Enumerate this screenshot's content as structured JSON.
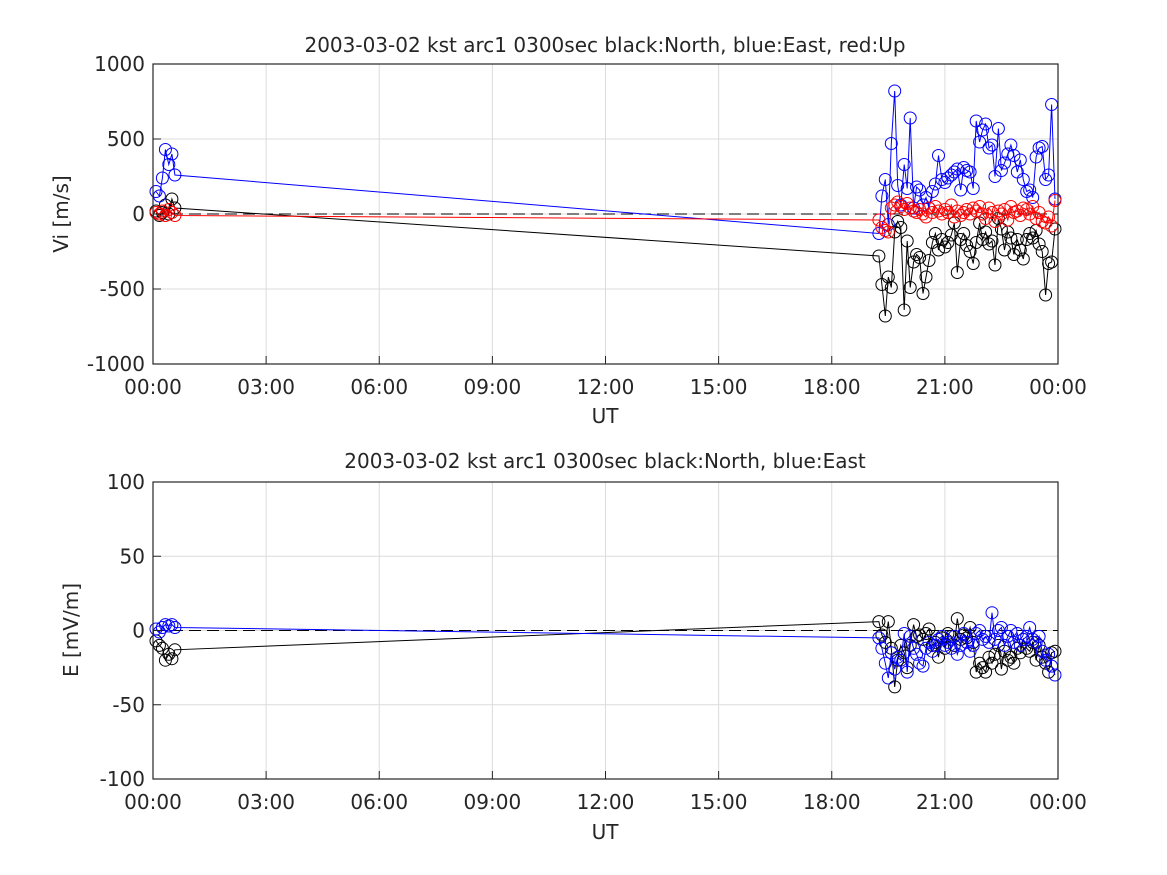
{
  "chart_data": [
    {
      "type": "line",
      "title": "2003-03-02 kst arc1 0300sec black:North, blue:East, red:Up",
      "xlabel": "UT",
      "ylabel": "Vi [m/s]",
      "ylim": [
        -1000,
        1000
      ],
      "yticks": [
        "1000",
        "500",
        "0",
        "-500",
        "-1000"
      ],
      "xlim_hours": [
        0,
        24
      ],
      "xticks": [
        "00:00",
        "03:00",
        "06:00",
        "09:00",
        "12:00",
        "15:00",
        "18:00",
        "21:00",
        "00:00"
      ],
      "grid": true,
      "zero_line": "dashed",
      "markers": "open-circle",
      "series": [
        {
          "name": "North",
          "color": "#000000",
          "x": [
            0.08,
            0.17,
            0.25,
            0.33,
            0.42,
            0.5,
            0.58,
            19.25,
            19.33,
            19.42,
            19.5,
            19.58,
            19.67,
            19.75,
            19.83,
            19.92,
            20.0,
            20.08,
            20.17,
            20.25,
            20.33,
            20.42,
            20.5,
            20.58,
            20.67,
            20.75,
            20.83,
            20.92,
            21.0,
            21.08,
            21.17,
            21.25,
            21.33,
            21.42,
            21.5,
            21.58,
            21.67,
            21.75,
            21.83,
            21.92,
            22.0,
            22.08,
            22.17,
            22.25,
            22.33,
            22.42,
            22.5,
            22.58,
            22.67,
            22.75,
            22.83,
            22.92,
            23.0,
            23.08,
            23.17,
            23.25,
            23.33,
            23.42,
            23.5,
            23.58,
            23.67,
            23.75,
            23.83,
            23.92
          ],
          "y": [
            20,
            -10,
            10,
            60,
            0,
            100,
            40,
            -280,
            -470,
            -680,
            -420,
            -490,
            -120,
            -50,
            -90,
            -640,
            -180,
            -490,
            -320,
            -270,
            -290,
            -530,
            -420,
            -310,
            -190,
            -130,
            -240,
            -170,
            -220,
            -190,
            -140,
            -60,
            -390,
            -170,
            -130,
            -210,
            -250,
            -330,
            -190,
            -60,
            -170,
            -120,
            -200,
            -180,
            -340,
            -30,
            -100,
            -240,
            -120,
            -160,
            -270,
            -170,
            -240,
            -300,
            -170,
            -130,
            -160,
            -110,
            -200,
            -250,
            -540,
            -330,
            -320,
            -100
          ]
        },
        {
          "name": "East",
          "color": "#0000ff",
          "x": [
            0.08,
            0.17,
            0.25,
            0.33,
            0.42,
            0.5,
            0.58,
            19.25,
            19.33,
            19.42,
            19.5,
            19.58,
            19.67,
            19.75,
            19.83,
            19.92,
            20.0,
            20.08,
            20.17,
            20.25,
            20.33,
            20.42,
            20.5,
            20.58,
            20.67,
            20.75,
            20.83,
            20.92,
            21.0,
            21.08,
            21.17,
            21.25,
            21.33,
            21.42,
            21.5,
            21.58,
            21.67,
            21.75,
            21.83,
            21.92,
            22.0,
            22.08,
            22.17,
            22.25,
            22.33,
            22.42,
            22.5,
            22.58,
            22.67,
            22.75,
            22.83,
            22.92,
            23.0,
            23.08,
            23.17,
            23.25,
            23.33,
            23.42,
            23.5,
            23.58,
            23.67,
            23.75,
            23.83,
            23.92
          ],
          "y": [
            150,
            120,
            240,
            430,
            330,
            400,
            260,
            -130,
            120,
            230,
            -70,
            470,
            820,
            190,
            60,
            330,
            170,
            640,
            40,
            180,
            160,
            60,
            110,
            40,
            150,
            200,
            390,
            230,
            210,
            240,
            260,
            280,
            300,
            160,
            310,
            290,
            280,
            170,
            620,
            480,
            560,
            600,
            440,
            460,
            250,
            570,
            290,
            340,
            400,
            460,
            390,
            280,
            360,
            230,
            150,
            160,
            110,
            380,
            440,
            450,
            230,
            260,
            730,
            100
          ]
        },
        {
          "name": "Up",
          "color": "#ff0000",
          "x": [
            0.08,
            0.17,
            0.25,
            0.33,
            0.42,
            0.5,
            0.58,
            19.25,
            19.33,
            19.42,
            19.5,
            19.58,
            19.67,
            19.75,
            19.83,
            19.92,
            20.0,
            20.08,
            20.17,
            20.25,
            20.33,
            20.42,
            20.5,
            20.58,
            20.67,
            20.75,
            20.83,
            20.92,
            21.0,
            21.08,
            21.17,
            21.25,
            21.33,
            21.42,
            21.5,
            21.58,
            21.67,
            21.75,
            21.83,
            21.92,
            22.0,
            22.08,
            22.17,
            22.25,
            22.33,
            22.42,
            22.5,
            22.58,
            22.67,
            22.75,
            22.83,
            22.92,
            23.0,
            23.08,
            23.17,
            23.25,
            23.33,
            23.42,
            23.5,
            23.58,
            23.67,
            23.75,
            23.83,
            23.92
          ],
          "y": [
            10,
            0,
            20,
            -10,
            30,
            10,
            -10,
            -40,
            -90,
            -110,
            -120,
            40,
            60,
            80,
            50,
            30,
            70,
            40,
            20,
            10,
            30,
            0,
            -20,
            40,
            10,
            50,
            20,
            0,
            30,
            10,
            60,
            -20,
            20,
            -10,
            10,
            30,
            0,
            40,
            20,
            50,
            0,
            -30,
            40,
            10,
            -50,
            20,
            0,
            30,
            -40,
            50,
            10,
            20,
            -10,
            40,
            30,
            0,
            50,
            -30,
            10,
            -50,
            -60,
            -20,
            -80,
            90
          ]
        }
      ]
    },
    {
      "type": "line",
      "title": "2003-03-02 kst arc1 0300sec black:North, blue:East",
      "xlabel": "UT",
      "ylabel": "E [mV/m]",
      "ylim": [
        -100,
        100
      ],
      "yticks": [
        "100",
        "50",
        "0",
        "-50",
        "-100"
      ],
      "xlim_hours": [
        0,
        24
      ],
      "xticks": [
        "00:00",
        "03:00",
        "06:00",
        "09:00",
        "12:00",
        "15:00",
        "18:00",
        "21:00",
        "00:00"
      ],
      "grid": true,
      "zero_line": "dashed",
      "markers": "open-circle",
      "series": [
        {
          "name": "North",
          "color": "#000000",
          "x": [
            0.08,
            0.17,
            0.25,
            0.33,
            0.42,
            0.5,
            0.58,
            19.25,
            19.33,
            19.42,
            19.5,
            19.58,
            19.67,
            19.75,
            19.83,
            19.92,
            20.0,
            20.08,
            20.17,
            20.25,
            20.33,
            20.42,
            20.5,
            20.58,
            20.67,
            20.75,
            20.83,
            20.92,
            21.0,
            21.08,
            21.17,
            21.25,
            21.33,
            21.42,
            21.5,
            21.58,
            21.67,
            21.75,
            21.83,
            21.92,
            22.0,
            22.08,
            22.17,
            22.25,
            22.33,
            22.42,
            22.5,
            22.58,
            22.67,
            22.75,
            22.83,
            22.92,
            23.0,
            23.08,
            23.17,
            23.25,
            23.33,
            23.42,
            23.5,
            23.58,
            23.67,
            23.75,
            23.83,
            23.92
          ],
          "y": [
            -7,
            -10,
            -12,
            -20,
            -16,
            -19,
            -13,
            6,
            -3,
            -8,
            6,
            -12,
            -38,
            -20,
            -10,
            -15,
            -25,
            -10,
            4,
            -4,
            -3,
            -6,
            -2,
            1,
            -10,
            -8,
            -18,
            -5,
            -12,
            -2,
            -4,
            -10,
            8,
            -6,
            -3,
            -5,
            2,
            -8,
            -28,
            -22,
            -25,
            -28,
            -18,
            -22,
            -16,
            -10,
            -26,
            -14,
            -20,
            -18,
            -22,
            -12,
            -15,
            -6,
            -12,
            -14,
            -8,
            -20,
            -10,
            -18,
            -22,
            -28,
            -15,
            -14
          ]
        },
        {
          "name": "East",
          "color": "#0000ff",
          "x": [
            0.08,
            0.17,
            0.25,
            0.33,
            0.42,
            0.5,
            0.58,
            19.25,
            19.33,
            19.42,
            19.5,
            19.58,
            19.67,
            19.75,
            19.83,
            19.92,
            20.0,
            20.08,
            20.17,
            20.25,
            20.33,
            20.42,
            20.5,
            20.58,
            20.67,
            20.75,
            20.83,
            20.92,
            21.0,
            21.08,
            21.17,
            21.25,
            21.33,
            21.42,
            21.5,
            21.58,
            21.67,
            21.75,
            21.83,
            21.92,
            22.0,
            22.08,
            22.17,
            22.25,
            22.33,
            22.42,
            22.5,
            22.58,
            22.67,
            22.75,
            22.83,
            22.92,
            23.0,
            23.08,
            23.17,
            23.25,
            23.33,
            23.42,
            23.5,
            23.58,
            23.67,
            23.75,
            23.83,
            23.92
          ],
          "y": [
            1,
            -1,
            2,
            4,
            3,
            4,
            2,
            -5,
            -12,
            -22,
            -32,
            -15,
            -26,
            -18,
            -20,
            -2,
            -28,
            -4,
            -12,
            -16,
            -22,
            -24,
            -12,
            -8,
            -14,
            -10,
            -6,
            -4,
            -10,
            -8,
            -12,
            -4,
            -16,
            -10,
            -2,
            -8,
            -14,
            -10,
            -2,
            0,
            -6,
            -4,
            -8,
            12,
            -6,
            0,
            2,
            -10,
            -4,
            0,
            -8,
            -2,
            -10,
            -6,
            -4,
            2,
            -6,
            -8,
            -4,
            -14,
            -20,
            -16,
            -24,
            -30
          ]
        }
      ]
    }
  ]
}
